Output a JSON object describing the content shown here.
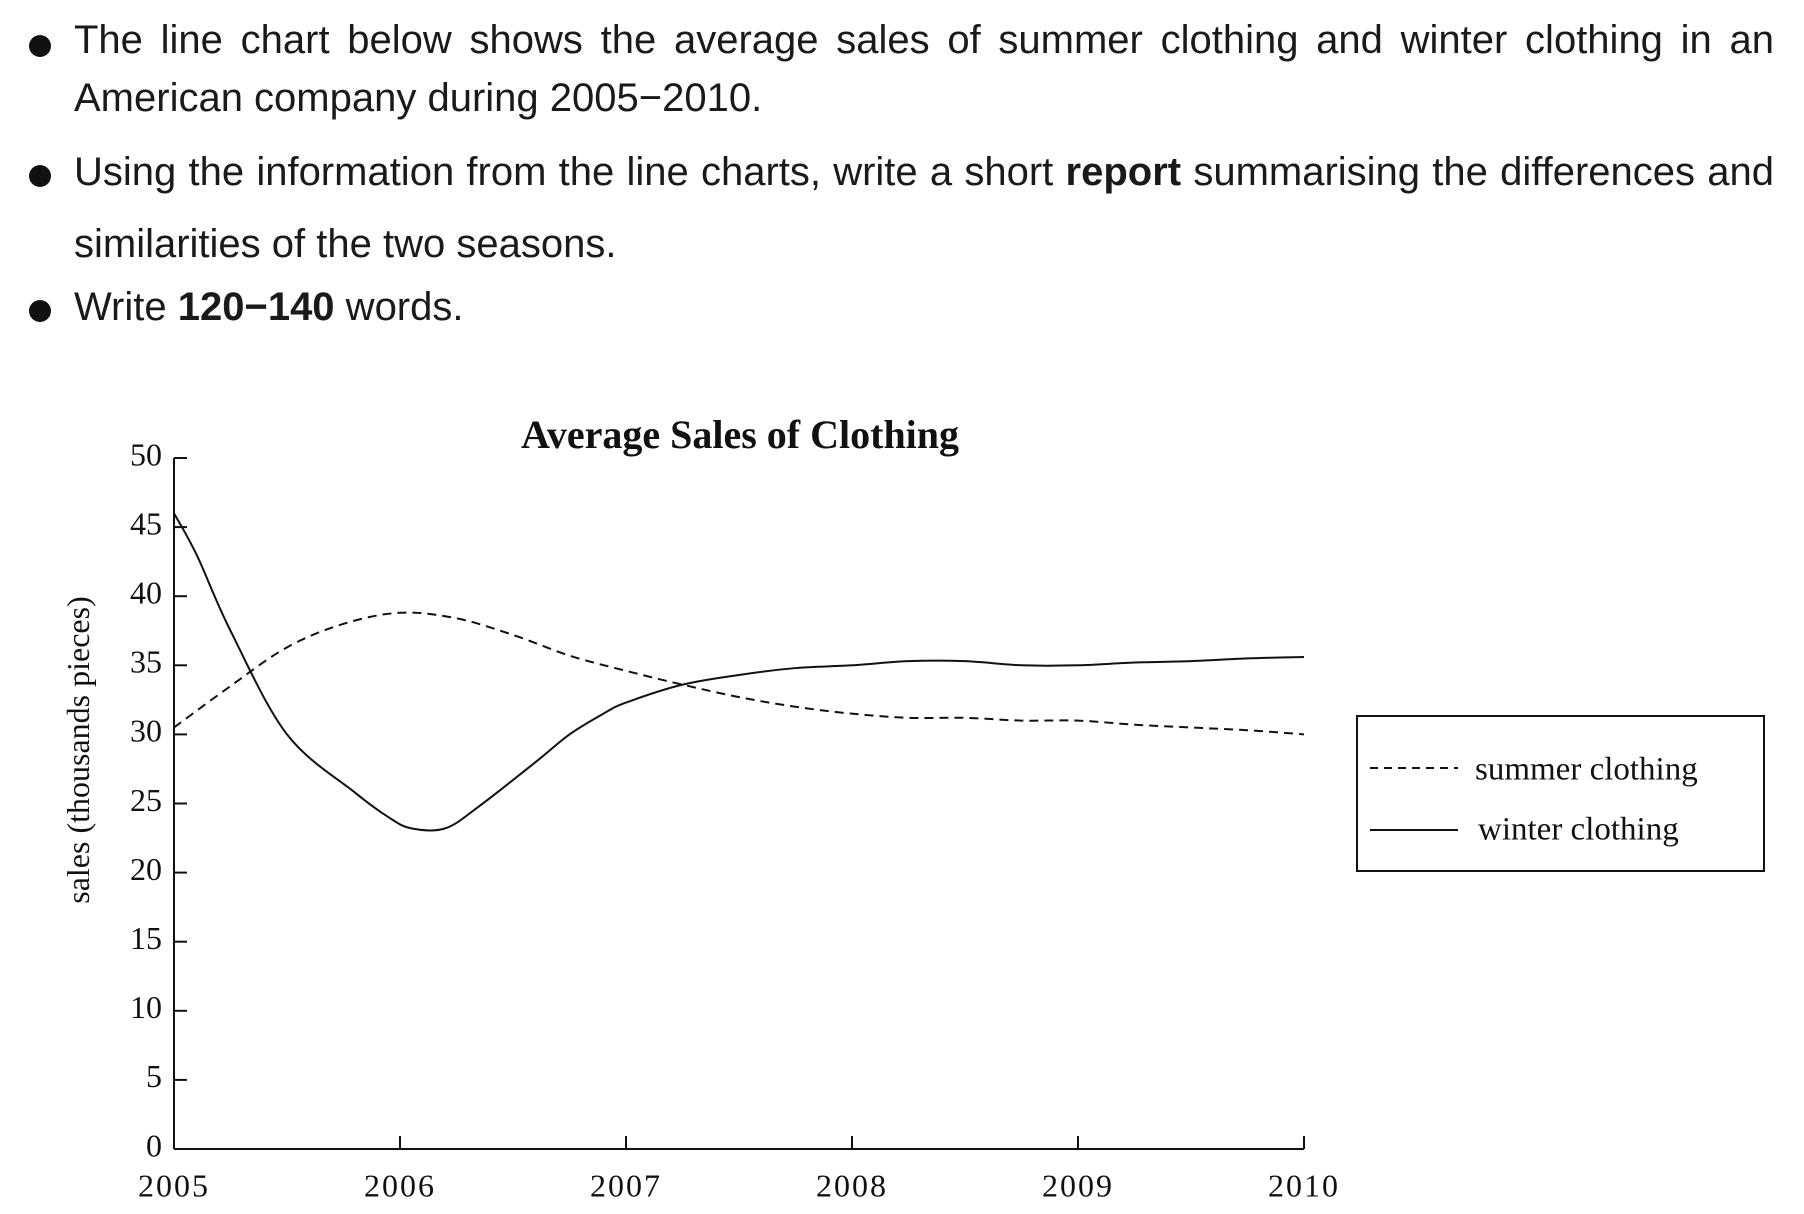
{
  "instructions": {
    "b1_line1": "The line chart below shows the average sales of summer clothing and winter clothing in an",
    "b1_line2": "American company during 2005−2010.",
    "b2_line1_pre": "Using the information from the line charts, write a short ",
    "b2_line1_bold": "report",
    "b2_line1_post": " summarising the differences and",
    "b2_line2": "similarities of the two seasons.",
    "b3_pre": "Write ",
    "b3_bold": "120−140",
    "b3_post": " words."
  },
  "chart_data": {
    "type": "line",
    "title": "Average Sales of Clothing",
    "xlabel": "",
    "ylabel": "sales (thousands pieces)",
    "x_ticks": [
      "2005",
      "2006",
      "2007",
      "2008",
      "2009",
      "2010"
    ],
    "y_ticks": [
      "0",
      "5",
      "10",
      "15",
      "20",
      "25",
      "30",
      "35",
      "40",
      "45",
      "50"
    ],
    "xlim": [
      2005,
      2010
    ],
    "ylim": [
      0,
      50
    ],
    "grid": false,
    "legend_position": "right",
    "series": [
      {
        "name": "summer clothing",
        "style": "dashed",
        "x": [
          2005,
          2005.25,
          2005.5,
          2005.75,
          2006,
          2006.25,
          2006.5,
          2006.75,
          2007,
          2007.25,
          2007.5,
          2007.75,
          2008,
          2008.25,
          2008.5,
          2008.75,
          2009,
          2009.25,
          2009.5,
          2009.75,
          2010
        ],
        "values": [
          30.5,
          33.5,
          36.3,
          38,
          38.8,
          38.4,
          37.2,
          35.7,
          34.6,
          33.6,
          32.7,
          32,
          31.5,
          31.2,
          31.2,
          31,
          31,
          30.7,
          30.5,
          30.3,
          30
        ]
      },
      {
        "name": "winter clothing",
        "style": "solid",
        "x": [
          2005,
          2005.1,
          2005.25,
          2005.5,
          2005.8,
          2005.95,
          2006.05,
          2006.2,
          2006.35,
          2006.6,
          2006.75,
          2006.9,
          2007,
          2007.25,
          2007.5,
          2007.75,
          2008,
          2008.25,
          2008.5,
          2008.75,
          2009,
          2009.25,
          2009.5,
          2009.75,
          2010
        ],
        "values": [
          46,
          43,
          37.5,
          30,
          25.8,
          24,
          23.2,
          23.2,
          24.8,
          28,
          30,
          31.5,
          32.3,
          33.6,
          34.3,
          34.8,
          35,
          35.3,
          35.3,
          35,
          35,
          35.2,
          35.3,
          35.5,
          35.6
        ]
      }
    ]
  }
}
